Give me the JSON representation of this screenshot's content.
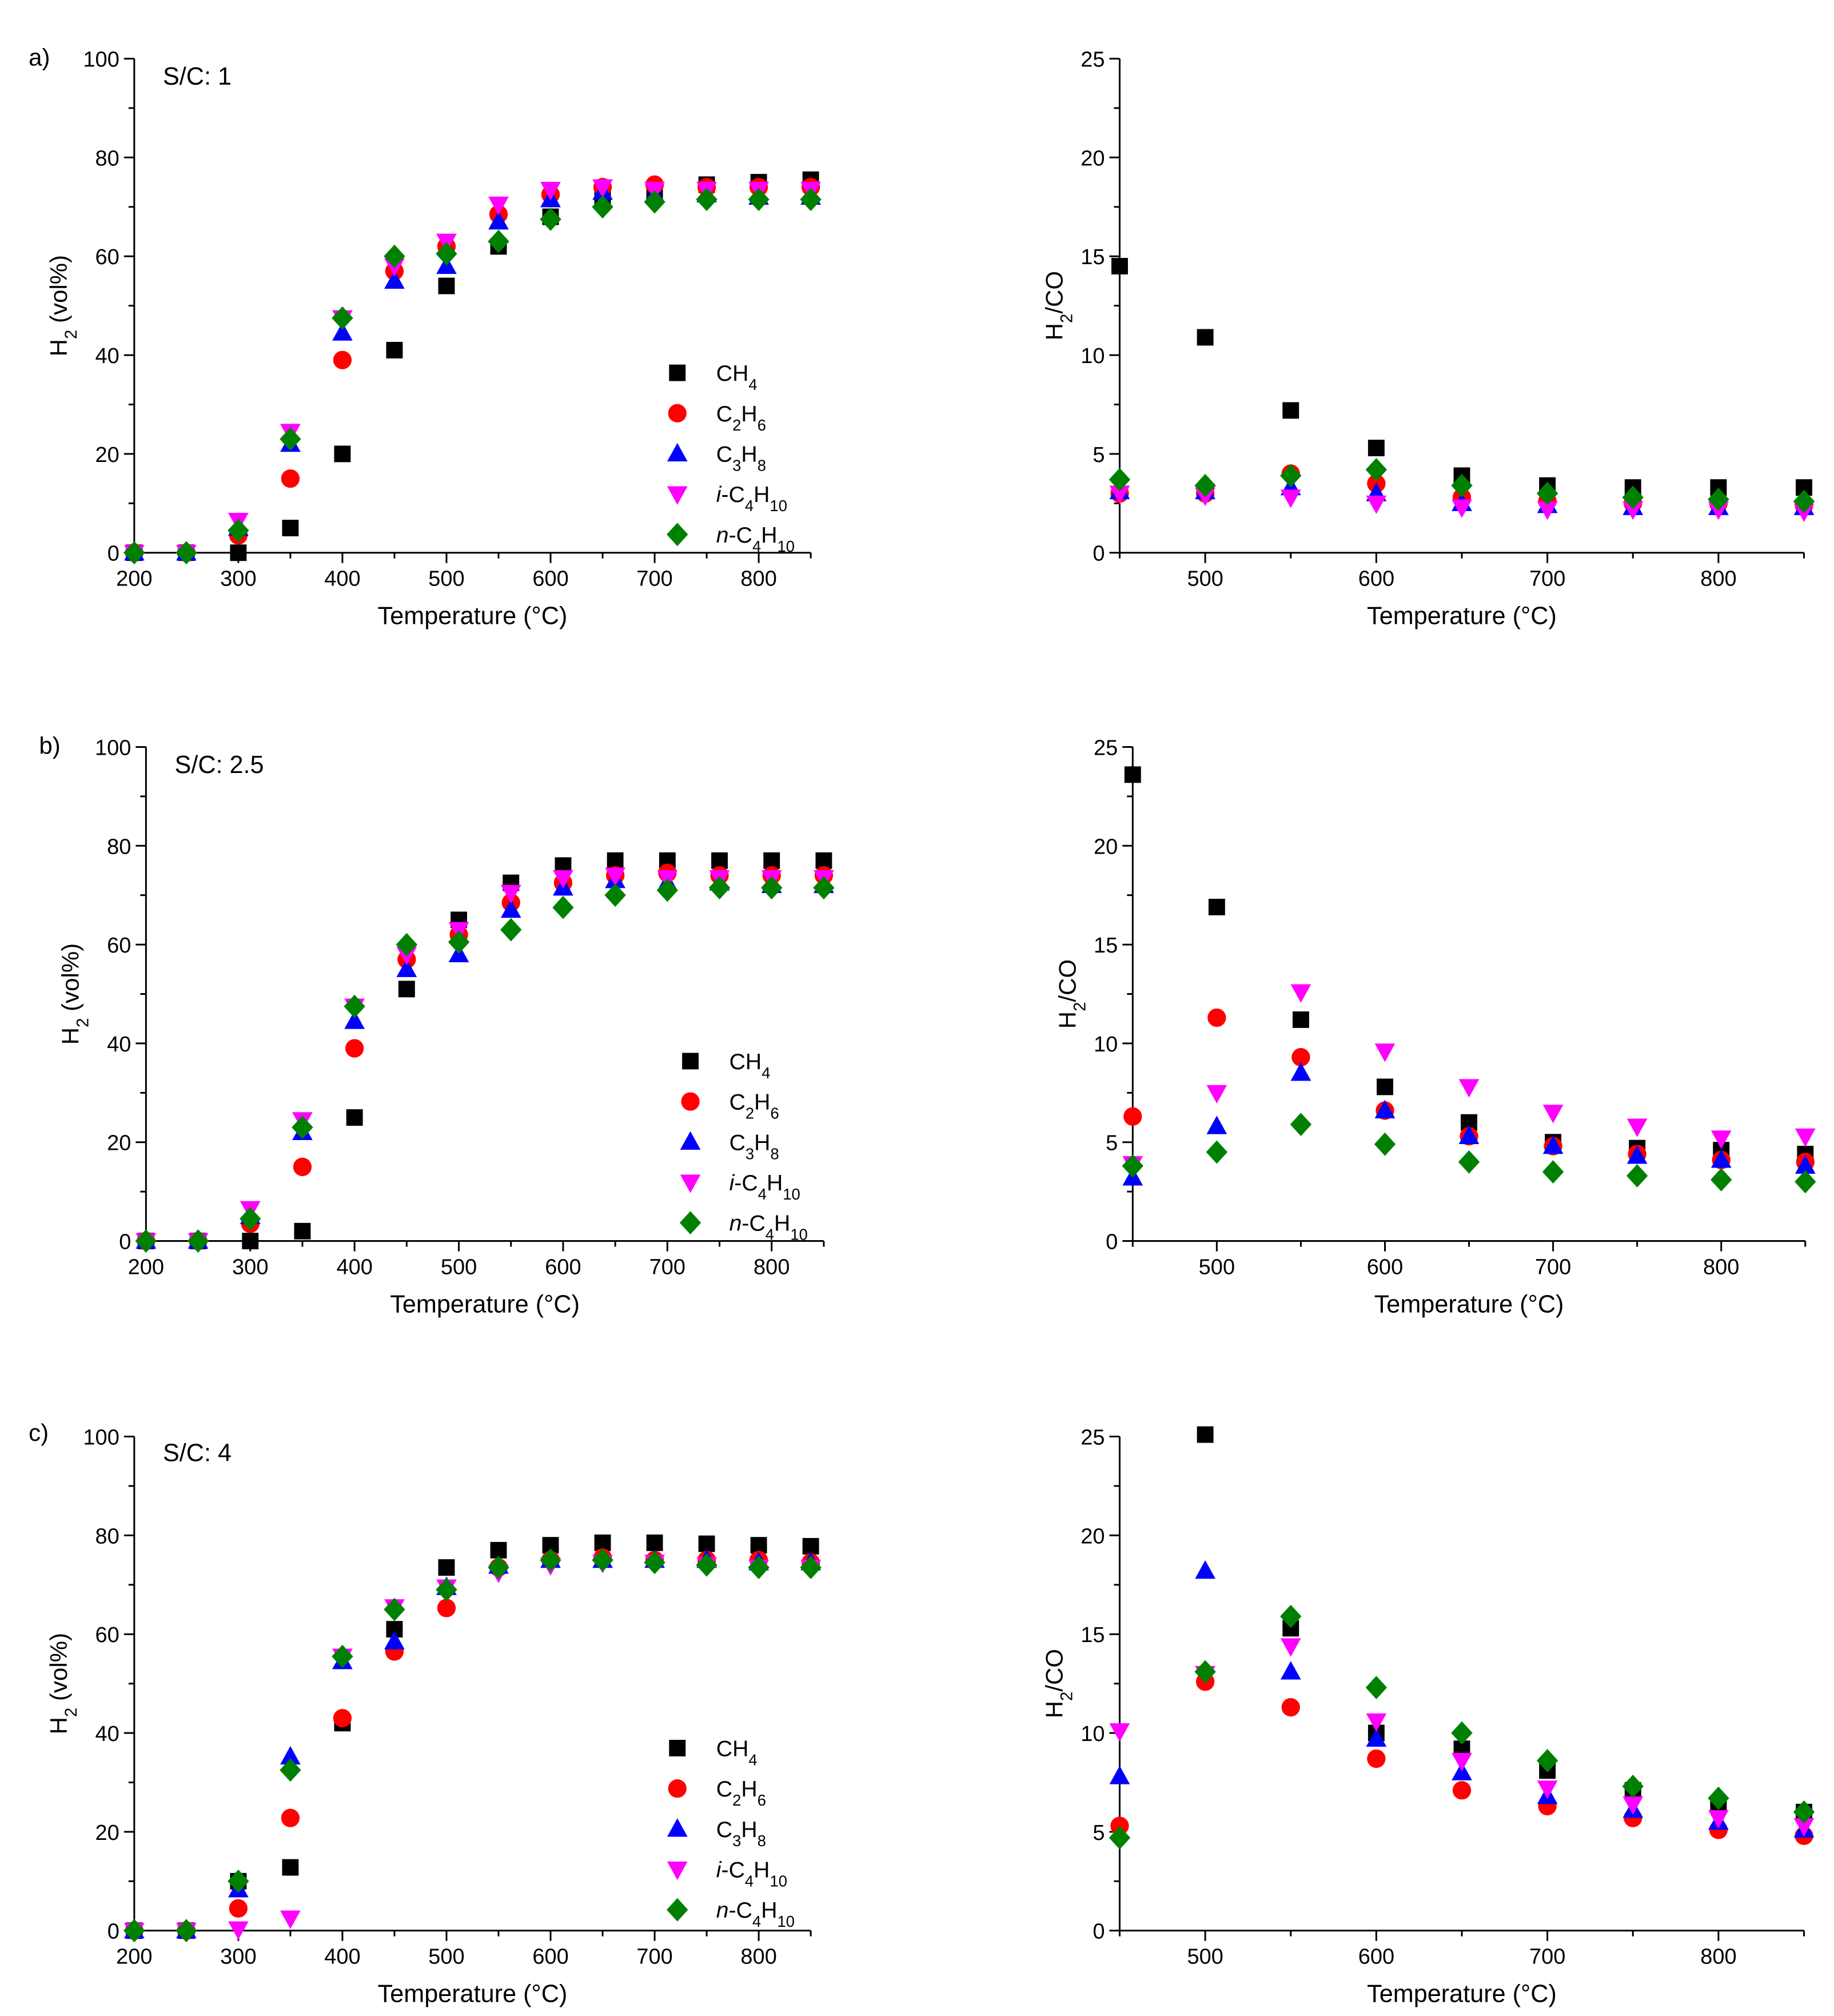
{
  "colors": {
    "ch4": "#000000",
    "c2h6": "#ff0000",
    "c3h8": "#0000ff",
    "ic4h10": "#ff00ff",
    "nc4h10": "#008000",
    "axis": "#000000"
  },
  "legend_entries": [
    {
      "key": "ch4",
      "marker": "square",
      "label": "CH4"
    },
    {
      "key": "c2h6",
      "marker": "circle",
      "label": "C2H6"
    },
    {
      "key": "c3h8",
      "marker": "triangle-up",
      "label": "C3H8"
    },
    {
      "key": "ic4h10",
      "marker": "triangle-down",
      "label": "i-C4H10"
    },
    {
      "key": "nc4h10",
      "marker": "diamond",
      "label": "n-C4H10"
    }
  ],
  "chart_data": [
    {
      "type": "scatter",
      "panel_label": "a)",
      "title": "S/C: 1",
      "xlabel": "Temperature (°C)",
      "ylabel": "H2 (vol%)",
      "xlim": [
        200,
        850
      ],
      "ylim": [
        0,
        100
      ],
      "xticks": [
        200,
        300,
        400,
        500,
        600,
        700,
        800
      ],
      "yticks": [
        0,
        20,
        40,
        60,
        80,
        100
      ],
      "legend": "center-right",
      "x": [
        200,
        250,
        300,
        350,
        400,
        450,
        500,
        550,
        600,
        650,
        700,
        750,
        800,
        850
      ],
      "series": [
        {
          "name": "CH4",
          "key": "ch4",
          "values": [
            0,
            0,
            0,
            5,
            20,
            41,
            54,
            62,
            68,
            72,
            73,
            74.5,
            75,
            75.5
          ]
        },
        {
          "name": "C2H6",
          "key": "c2h6",
          "values": [
            0,
            0,
            3.5,
            15,
            39,
            57,
            62,
            68.5,
            72.5,
            74,
            74.5,
            74,
            74,
            74
          ]
        },
        {
          "name": "C3H8",
          "key": "c3h8",
          "values": [
            0,
            0,
            5,
            22,
            44.5,
            55,
            58,
            67,
            71.5,
            73,
            72.5,
            72.5,
            72,
            72
          ]
        },
        {
          "name": "i-C4H10",
          "key": "ic4h10",
          "values": [
            0,
            0,
            6.5,
            24.5,
            47.5,
            58,
            63,
            70.5,
            73.5,
            74,
            73.5,
            73.5,
            73.5,
            73.5
          ]
        },
        {
          "name": "n-C4H10",
          "key": "nc4h10",
          "values": [
            0,
            0,
            4.5,
            23,
            47.5,
            60,
            60.5,
            63,
            67.5,
            70,
            71,
            71.5,
            71.5,
            71.5
          ]
        }
      ]
    },
    {
      "type": "scatter",
      "panel_label": "",
      "title": "",
      "xlabel": "Temperature (°C)",
      "ylabel": "H2/CO",
      "xlim": [
        450,
        850
      ],
      "ylim": [
        0,
        25
      ],
      "xticks": [
        500,
        600,
        700,
        800
      ],
      "yticks": [
        0,
        5,
        10,
        15,
        20,
        25
      ],
      "x": [
        450,
        500,
        550,
        600,
        650,
        700,
        750,
        800,
        850
      ],
      "series": [
        {
          "name": "CH4",
          "key": "ch4",
          "values": [
            14.5,
            10.9,
            7.2,
            5.3,
            3.9,
            3.4,
            3.3,
            3.3,
            3.3
          ]
        },
        {
          "name": "C2H6",
          "key": "c2h6",
          "values": [
            3.0,
            3.0,
            4.0,
            3.5,
            2.8,
            2.6,
            2.5,
            2.5,
            2.4
          ]
        },
        {
          "name": "C3H8",
          "key": "c3h8",
          "values": [
            3.1,
            3.1,
            3.3,
            3.0,
            2.5,
            2.4,
            2.3,
            2.3,
            2.3
          ]
        },
        {
          "name": "i-C4H10",
          "key": "ic4h10",
          "values": [
            3.0,
            2.9,
            2.8,
            2.5,
            2.3,
            2.2,
            2.2,
            2.2,
            2.1
          ]
        },
        {
          "name": "n-C4H10",
          "key": "nc4h10",
          "values": [
            3.7,
            3.4,
            3.9,
            4.2,
            3.4,
            3.0,
            2.8,
            2.7,
            2.6
          ]
        }
      ]
    },
    {
      "type": "scatter",
      "panel_label": "b)",
      "title": "S/C: 2.5",
      "xlabel": "Temperature (°C)",
      "ylabel": "H2 (vol%)",
      "xlim": [
        200,
        850
      ],
      "ylim": [
        0,
        100
      ],
      "xticks": [
        200,
        300,
        400,
        500,
        600,
        700,
        800
      ],
      "yticks": [
        0,
        20,
        40,
        60,
        80,
        100
      ],
      "legend": "center-right",
      "x": [
        200,
        250,
        300,
        350,
        400,
        450,
        500,
        550,
        600,
        650,
        700,
        750,
        800,
        850
      ],
      "series": [
        {
          "name": "CH4",
          "key": "ch4",
          "values": [
            0,
            0,
            0,
            2,
            25,
            51,
            65,
            72.5,
            76,
            77,
            77,
            77,
            77,
            77
          ]
        },
        {
          "name": "C2H6",
          "key": "c2h6",
          "values": [
            0,
            0,
            3.5,
            15,
            39,
            57,
            62,
            68.5,
            72.5,
            74,
            74.5,
            74,
            74,
            74
          ]
        },
        {
          "name": "C3H8",
          "key": "c3h8",
          "values": [
            0,
            0,
            5,
            22,
            44.5,
            55,
            58,
            67,
            71.5,
            73,
            72.5,
            72.5,
            72,
            72
          ]
        },
        {
          "name": "i-C4H10",
          "key": "ic4h10",
          "values": [
            0,
            0,
            6.5,
            24.5,
            47.5,
            58,
            63,
            70.5,
            73.5,
            74,
            73.5,
            73.5,
            73.5,
            73.5
          ]
        },
        {
          "name": "n-C4H10",
          "key": "nc4h10",
          "values": [
            0,
            0,
            4.5,
            23,
            47.5,
            60,
            60.5,
            63,
            67.5,
            70,
            71,
            71.5,
            71.5,
            71.5
          ]
        }
      ]
    },
    {
      "type": "scatter",
      "panel_label": "",
      "title": "",
      "xlabel": "Temperature (°C)",
      "ylabel": "H2/CO",
      "xlim": [
        450,
        850
      ],
      "ylim": [
        0,
        25
      ],
      "xticks": [
        500,
        600,
        700,
        800
      ],
      "yticks": [
        0,
        5,
        10,
        15,
        20,
        25
      ],
      "x": [
        450,
        500,
        550,
        600,
        650,
        700,
        750,
        800,
        850
      ],
      "series": [
        {
          "name": "CH4",
          "key": "ch4",
          "values": [
            23.6,
            16.9,
            11.2,
            7.8,
            6.0,
            5.0,
            4.7,
            4.6,
            4.4
          ]
        },
        {
          "name": "C2H6",
          "key": "c2h6",
          "values": [
            6.3,
            11.3,
            9.3,
            6.6,
            5.3,
            4.8,
            4.4,
            4.1,
            4.0
          ]
        },
        {
          "name": "C3H8",
          "key": "c3h8",
          "values": [
            3.2,
            5.8,
            8.5,
            6.6,
            5.3,
            4.8,
            4.3,
            4.1,
            3.8
          ]
        },
        {
          "name": "i-C4H10",
          "key": "ic4h10",
          "values": [
            3.9,
            7.5,
            12.6,
            9.6,
            7.8,
            6.5,
            5.8,
            5.2,
            5.3
          ]
        },
        {
          "name": "n-C4H10",
          "key": "nc4h10",
          "values": [
            3.8,
            4.5,
            5.9,
            4.9,
            4.0,
            3.5,
            3.3,
            3.1,
            3.0
          ]
        }
      ]
    },
    {
      "type": "scatter",
      "panel_label": "c)",
      "title": "S/C: 4",
      "xlabel": "Temperature (°C)",
      "ylabel": "H2 (vol%)",
      "xlim": [
        200,
        850
      ],
      "ylim": [
        0,
        100
      ],
      "xticks": [
        200,
        300,
        400,
        500,
        600,
        700,
        800
      ],
      "yticks": [
        0,
        20,
        40,
        60,
        80,
        100
      ],
      "legend": "center-right",
      "x": [
        200,
        250,
        300,
        350,
        400,
        450,
        500,
        550,
        600,
        650,
        700,
        750,
        800,
        850
      ],
      "series": [
        {
          "name": "CH4",
          "key": "ch4",
          "values": [
            0,
            0,
            10,
            12.8,
            42,
            61,
            73.5,
            77,
            78,
            78.5,
            78.5,
            78.3,
            78,
            77.8
          ]
        },
        {
          "name": "C2H6",
          "key": "c2h6",
          "values": [
            0,
            0,
            4.5,
            22.8,
            43,
            56.5,
            65.3,
            73.5,
            75,
            75.5,
            75,
            75,
            75,
            74.5
          ]
        },
        {
          "name": "C3H8",
          "key": "c3h8",
          "values": [
            0,
            0,
            8.3,
            35.2,
            54.5,
            58.5,
            69.5,
            73.8,
            75,
            75,
            75,
            75,
            74.5,
            74.5
          ]
        },
        {
          "name": "i-C4H10",
          "key": "ic4h10",
          "values": [
            0,
            0,
            0.3,
            2.5,
            55.5,
            65.5,
            69.5,
            72.5,
            74,
            74.5,
            74.5,
            74,
            73.5,
            73.5
          ]
        },
        {
          "name": "n-C4H10",
          "key": "nc4h10",
          "values": [
            0,
            0,
            10,
            32.5,
            55.5,
            65,
            69,
            73.5,
            75,
            75,
            74.5,
            74,
            73.5,
            73.5
          ]
        }
      ]
    },
    {
      "type": "scatter",
      "panel_label": "",
      "title": "",
      "xlabel": "Temperature (°C)",
      "ylabel": "H2/CO",
      "xlim": [
        450,
        850
      ],
      "ylim": [
        0,
        25
      ],
      "xticks": [
        500,
        600,
        700,
        800
      ],
      "yticks": [
        0,
        5,
        10,
        15,
        20,
        25
      ],
      "x": [
        450,
        500,
        550,
        600,
        650,
        700,
        750,
        800,
        850
      ],
      "series": [
        {
          "name": "CH4",
          "key": "ch4",
          "values": [
            null,
            25.1,
            15.3,
            10.0,
            9.2,
            8.1,
            7.1,
            6.4,
            6.0
          ]
        },
        {
          "name": "C2H6",
          "key": "c2h6",
          "values": [
            5.3,
            12.6,
            11.3,
            8.7,
            7.1,
            6.3,
            5.7,
            5.1,
            4.8
          ]
        },
        {
          "name": "C3H8",
          "key": "c3h8",
          "values": [
            7.8,
            18.2,
            13.1,
            9.7,
            8.0,
            6.8,
            6.1,
            5.5,
            5.1
          ]
        },
        {
          "name": "i-C4H10",
          "key": "ic4h10",
          "values": [
            10.1,
            13.0,
            14.4,
            10.6,
            8.6,
            7.2,
            6.4,
            5.7,
            5.3
          ]
        },
        {
          "name": "n-C4H10",
          "key": "nc4h10",
          "values": [
            4.7,
            13.1,
            15.9,
            12.3,
            10.0,
            8.6,
            7.3,
            6.7,
            6.0
          ]
        }
      ]
    }
  ]
}
